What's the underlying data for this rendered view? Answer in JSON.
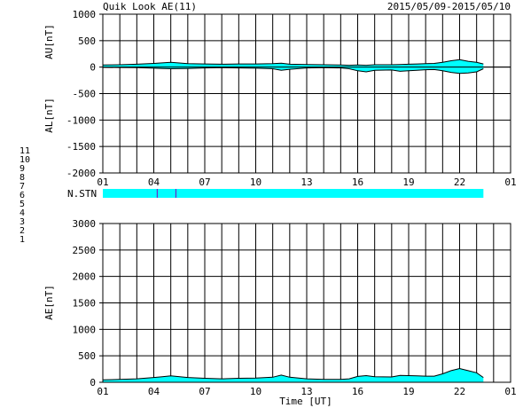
{
  "header": {
    "title": "Quik Look AE(11)",
    "date_range": "2015/05/09-2015/05/10"
  },
  "colors": {
    "fill": "#00ffff",
    "trace": "#000000",
    "marker": "#8000c0"
  },
  "station_legend": [
    {
      "label": "11",
      "color": "#ff40ff"
    },
    {
      "label": "10",
      "color": "#e00080"
    },
    {
      "label": "9",
      "color": "#4000c0"
    },
    {
      "label": "8",
      "color": "#e0e000"
    },
    {
      "label": "7",
      "color": "#a0e040"
    },
    {
      "label": "6",
      "color": "#e00000"
    },
    {
      "label": "5",
      "color": "#c0c0c0"
    },
    {
      "label": "4",
      "color": "#80a0c0"
    },
    {
      "label": "3",
      "color": "#00a0a0"
    },
    {
      "label": "2",
      "color": "#c000c0"
    },
    {
      "label": "1",
      "color": "#2000c0"
    }
  ],
  "nstn": {
    "label": "N.STN",
    "start_hour": 1,
    "end_hour": 23.4,
    "station_count": 11,
    "drop_hours": [
      4.2,
      5.3
    ]
  },
  "chart_data": [
    {
      "type": "area",
      "title": "",
      "ylabel_upper": "AU[nT]",
      "ylabel_lower": "AL[nT]",
      "xlabel": "",
      "x_ticks": [
        "01",
        "04",
        "07",
        "10",
        "13",
        "16",
        "19",
        "22",
        "01"
      ],
      "x_tick_hours": [
        1,
        4,
        7,
        10,
        13,
        16,
        19,
        22,
        25
      ],
      "xlim": [
        1,
        25
      ],
      "ylim": [
        -2000,
        1000
      ],
      "y_ticks": [
        1000,
        500,
        0,
        -500,
        -1000,
        -1500,
        -2000
      ],
      "grid": true,
      "series": [
        {
          "x": [
            1,
            2,
            3,
            4,
            4.5,
            5,
            6,
            7,
            8,
            9,
            10,
            11,
            11.5,
            12,
            13,
            14,
            15,
            15.5,
            16,
            16.5,
            17,
            18,
            18.5,
            19,
            19.5,
            20,
            20.5,
            21,
            21.5,
            22,
            22.5,
            23,
            23.4
          ],
          "values": [
            40,
            45,
            55,
            70,
            80,
            90,
            65,
            60,
            55,
            60,
            60,
            65,
            75,
            55,
            50,
            45,
            40,
            35,
            40,
            35,
            45,
            45,
            50,
            55,
            60,
            65,
            70,
            90,
            120,
            140,
            110,
            90,
            60
          ]
        },
        {
          "x": [
            1,
            2,
            3,
            4,
            4.5,
            5,
            6,
            7,
            8,
            9,
            10,
            11,
            11.5,
            12,
            13,
            14,
            15,
            15.5,
            16,
            16.5,
            17,
            18,
            18.5,
            19,
            19.5,
            20,
            20.5,
            21,
            21.5,
            22,
            22.5,
            23,
            23.4
          ],
          "values": [
            -5,
            -8,
            -10,
            -20,
            -25,
            -30,
            -25,
            -15,
            -10,
            -15,
            -20,
            -30,
            -60,
            -40,
            -15,
            -10,
            -15,
            -30,
            -70,
            -90,
            -60,
            -55,
            -80,
            -70,
            -60,
            -50,
            -45,
            -70,
            -100,
            -120,
            -110,
            -90,
            -30
          ]
        }
      ]
    },
    {
      "type": "area",
      "title": "",
      "ylabel": "AE[nT]",
      "xlabel": "Time [UT]",
      "x_ticks": [
        "01",
        "04",
        "07",
        "10",
        "13",
        "16",
        "19",
        "22",
        "01"
      ],
      "x_tick_hours": [
        1,
        4,
        7,
        10,
        13,
        16,
        19,
        22,
        25
      ],
      "xlim": [
        1,
        25
      ],
      "ylim": [
        0,
        3000
      ],
      "y_ticks": [
        3000,
        2500,
        2000,
        1500,
        1000,
        500,
        0
      ],
      "grid": true,
      "series": [
        {
          "x": [
            1,
            2,
            3,
            4,
            4.5,
            5,
            6,
            7,
            8,
            9,
            10,
            11,
            11.5,
            12,
            13,
            14,
            15,
            15.5,
            16,
            16.5,
            17,
            18,
            18.5,
            19,
            19.5,
            20,
            20.5,
            21,
            21.5,
            22,
            22.5,
            23,
            23.4
          ],
          "values": [
            45,
            53,
            65,
            90,
            105,
            120,
            90,
            75,
            65,
            75,
            80,
            95,
            135,
            95,
            65,
            55,
            55,
            65,
            110,
            125,
            105,
            100,
            130,
            125,
            120,
            115,
            115,
            160,
            220,
            260,
            220,
            180,
            90
          ]
        }
      ]
    }
  ]
}
